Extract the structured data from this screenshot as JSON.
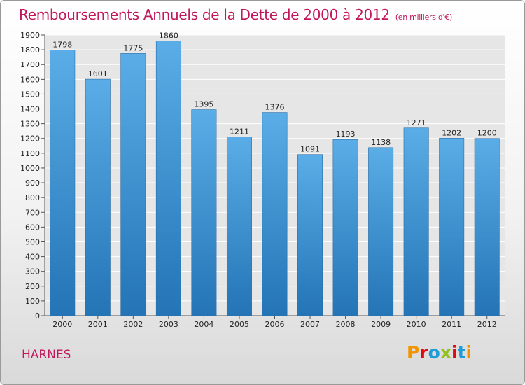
{
  "header": {
    "title": "Remboursements Annuels de la Dette de 2000 à 2012",
    "subtitle": "(en milliers d'€)"
  },
  "footer": {
    "commune": "HARNES",
    "logo_text": "Proxiti"
  },
  "colors": {
    "bar_top": "#5aade6",
    "bar_bottom": "#2474b6",
    "title": "#c2185b",
    "logo": [
      "#f29400",
      "#e30613",
      "#1f9bd7",
      "#95c11f",
      "#e30613",
      "#1f9bd7",
      "#f29400"
    ]
  },
  "chart_data": {
    "type": "bar",
    "title": "Remboursements Annuels de la Dette de 2000 à 2012",
    "subtitle": "(en milliers d'€)",
    "categories": [
      "2000",
      "2001",
      "2002",
      "2003",
      "2004",
      "2005",
      "2006",
      "2007",
      "2008",
      "2009",
      "2010",
      "2011",
      "2012"
    ],
    "values": [
      1798,
      1601,
      1775,
      1860,
      1395,
      1211,
      1376,
      1091,
      1193,
      1138,
      1271,
      1202,
      1200
    ],
    "xlabel": "",
    "ylabel": "",
    "ylim": [
      0,
      1900
    ],
    "ytick_step": 100,
    "grid": true,
    "legend": "none"
  }
}
